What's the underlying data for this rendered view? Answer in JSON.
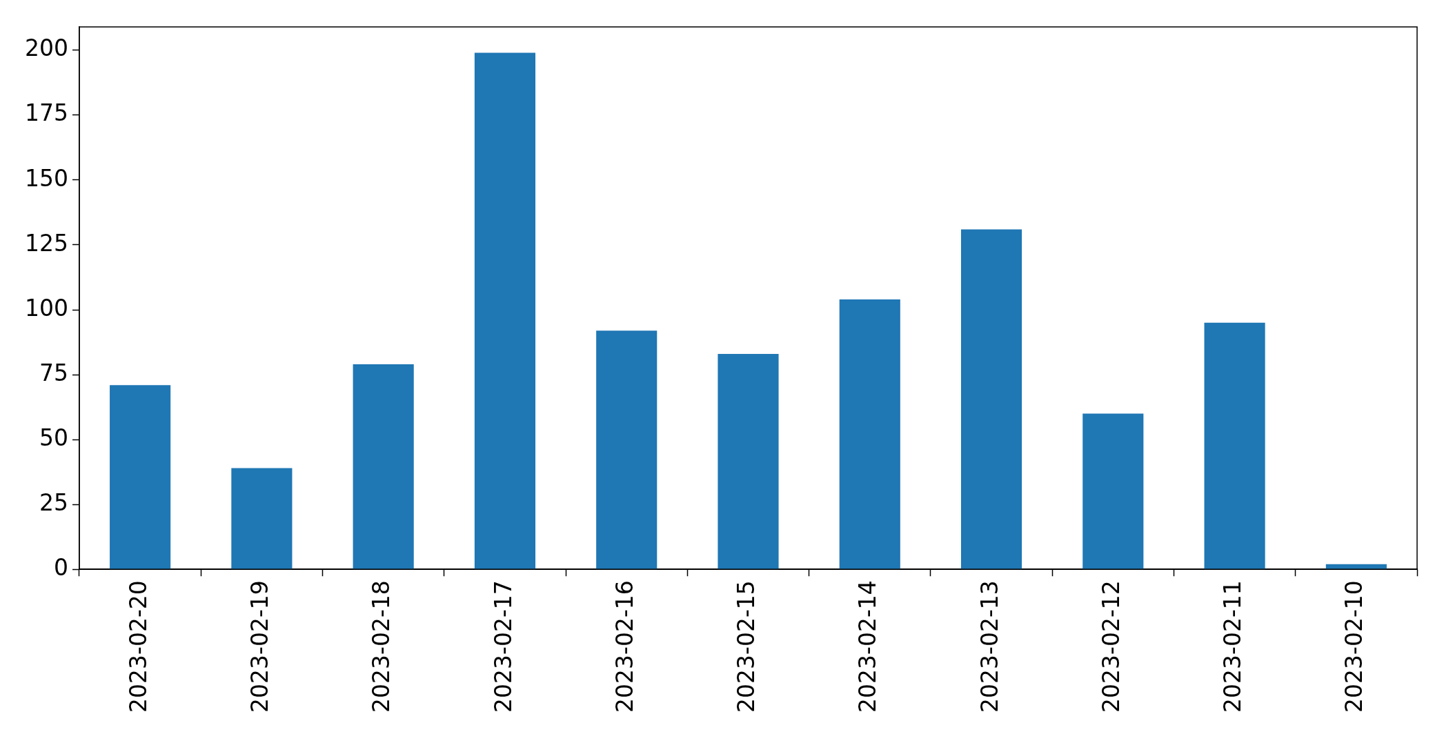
{
  "chart_data": {
    "type": "bar",
    "categories": [
      "2023-02-20",
      "2023-02-19",
      "2023-02-18",
      "2023-02-17",
      "2023-02-16",
      "2023-02-15",
      "2023-02-14",
      "2023-02-13",
      "2023-02-12",
      "2023-02-11",
      "2023-02-10"
    ],
    "values": [
      71,
      39,
      79,
      199,
      92,
      83,
      104,
      131,
      60,
      95,
      2
    ],
    "color": "#1f77b4",
    "ylim": [
      0,
      209
    ],
    "yticks": [
      0,
      25,
      50,
      75,
      100,
      125,
      150,
      175,
      200
    ],
    "grid": false
  }
}
